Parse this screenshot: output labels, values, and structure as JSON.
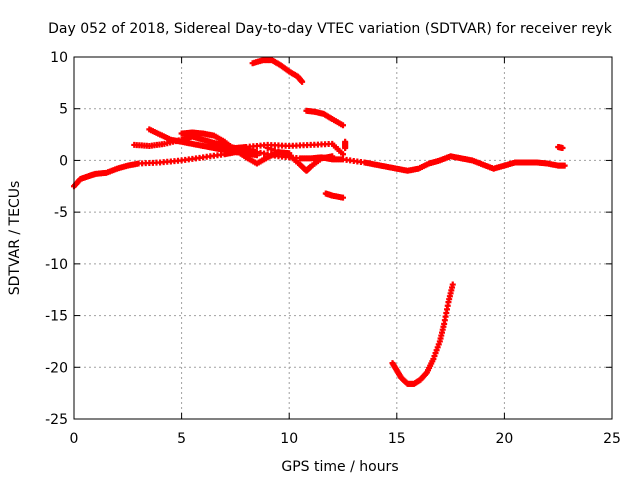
{
  "chart_data": {
    "type": "scatter",
    "title": "Day 052 of 2018, Sidereal Day-to-day VTEC variation (SDTVAR) for receiver reyk",
    "xlabel": "GPS time / hours",
    "ylabel": "SDTVAR / TECUs",
    "xlim": [
      0,
      25
    ],
    "ylim": [
      -25,
      10
    ],
    "xticks": [
      0,
      5,
      10,
      15,
      20,
      25
    ],
    "yticks": [
      -25,
      -20,
      -15,
      -10,
      -5,
      0,
      5,
      10
    ],
    "xtick_labels": [
      "0",
      "5",
      "10",
      "15",
      "20",
      "25"
    ],
    "ytick_labels": [
      "-25",
      "-20",
      "-15",
      "-10",
      "-5",
      "0",
      "5",
      "10"
    ],
    "grid": true,
    "marker_color": "#ff0000",
    "series": [
      {
        "name": "trace-main-low",
        "values": [
          [
            0.0,
            -2.5
          ],
          [
            0.3,
            -1.8
          ],
          [
            0.7,
            -1.5
          ],
          [
            1.0,
            -1.3
          ],
          [
            1.5,
            -1.2
          ],
          [
            2.0,
            -0.8
          ],
          [
            2.5,
            -0.5
          ],
          [
            3.0,
            -0.3
          ],
          [
            4.0,
            -0.2
          ],
          [
            5.0,
            0.0
          ],
          [
            6.0,
            0.3
          ],
          [
            7.0,
            0.6
          ],
          [
            7.5,
            0.8
          ],
          [
            8.0,
            1.0
          ],
          [
            8.5,
            0.8
          ],
          [
            9.5,
            0.4
          ],
          [
            10.5,
            0.2
          ],
          [
            11.0,
            0.2
          ],
          [
            11.5,
            0.3
          ],
          [
            12.0,
            0.1
          ],
          [
            12.5,
            0.1
          ],
          [
            13.5,
            -0.2
          ],
          [
            14.0,
            -0.4
          ],
          [
            14.5,
            -0.6
          ],
          [
            15.0,
            -0.8
          ],
          [
            15.5,
            -1.0
          ],
          [
            16.0,
            -0.8
          ],
          [
            16.5,
            -0.3
          ],
          [
            17.0,
            0.0
          ],
          [
            17.5,
            0.4
          ],
          [
            18.0,
            0.2
          ],
          [
            18.5,
            0.0
          ],
          [
            19.0,
            -0.4
          ],
          [
            19.5,
            -0.8
          ],
          [
            20.0,
            -0.5
          ],
          [
            20.5,
            -0.2
          ],
          [
            21.0,
            -0.2
          ],
          [
            21.5,
            -0.2
          ],
          [
            22.0,
            -0.3
          ],
          [
            22.5,
            -0.5
          ],
          [
            22.8,
            -0.5
          ]
        ]
      },
      {
        "name": "trace-upper-a",
        "values": [
          [
            2.8,
            1.5
          ],
          [
            3.5,
            1.4
          ],
          [
            4.2,
            1.6
          ],
          [
            5.0,
            2.0
          ],
          [
            5.5,
            2.3
          ],
          [
            6.0,
            2.0
          ],
          [
            6.5,
            1.7
          ],
          [
            7.0,
            1.4
          ],
          [
            7.5,
            1.2
          ],
          [
            8.0,
            1.3
          ],
          [
            9.0,
            1.5
          ],
          [
            10.0,
            1.4
          ],
          [
            11.0,
            1.5
          ],
          [
            12.0,
            1.6
          ],
          [
            12.5,
            0.6
          ]
        ]
      },
      {
        "name": "trace-upper-b",
        "values": [
          [
            3.5,
            3.0
          ],
          [
            4.0,
            2.5
          ],
          [
            4.5,
            2.0
          ],
          [
            5.0,
            1.8
          ],
          [
            5.5,
            1.6
          ],
          [
            6.0,
            1.4
          ],
          [
            6.5,
            1.2
          ],
          [
            7.0,
            1.0
          ],
          [
            7.5,
            0.8
          ],
          [
            8.0,
            0.7
          ],
          [
            8.5,
            0.5
          ]
        ]
      },
      {
        "name": "trace-upper-c",
        "values": [
          [
            5.0,
            2.6
          ],
          [
            5.5,
            2.7
          ],
          [
            6.0,
            2.6
          ],
          [
            6.5,
            2.4
          ],
          [
            7.0,
            1.8
          ],
          [
            7.5,
            1.0
          ],
          [
            8.0,
            0.3
          ],
          [
            8.5,
            -0.3
          ],
          [
            9.0,
            0.3
          ],
          [
            9.5,
            0.8
          ],
          [
            10.0,
            0.7
          ]
        ]
      },
      {
        "name": "trace-upper-d",
        "values": [
          [
            9.0,
            1.2
          ],
          [
            10.0,
            0.5
          ],
          [
            10.5,
            -0.4
          ],
          [
            10.8,
            -1.0
          ],
          [
            11.0,
            -0.6
          ],
          [
            11.5,
            0.2
          ],
          [
            12.0,
            0.4
          ]
        ]
      },
      {
        "name": "trace-top",
        "values": [
          [
            8.3,
            9.4
          ],
          [
            8.8,
            9.7
          ],
          [
            9.2,
            9.7
          ],
          [
            9.6,
            9.2
          ],
          [
            10.0,
            8.6
          ],
          [
            10.4,
            8.1
          ],
          [
            10.6,
            7.6
          ]
        ]
      },
      {
        "name": "trace-mid-right",
        "values": [
          [
            10.8,
            4.8
          ],
          [
            11.2,
            4.7
          ],
          [
            11.6,
            4.5
          ],
          [
            12.0,
            4.0
          ],
          [
            12.5,
            3.4
          ]
        ]
      },
      {
        "name": "trace-short-low",
        "values": [
          [
            11.7,
            -3.2
          ],
          [
            12.0,
            -3.4
          ],
          [
            12.5,
            -3.6
          ]
        ]
      },
      {
        "name": "trace-blip-right",
        "values": [
          [
            12.6,
            1.8
          ],
          [
            12.6,
            1.2
          ]
        ]
      },
      {
        "name": "trace-end-blip",
        "values": [
          [
            22.5,
            1.3
          ],
          [
            22.7,
            1.2
          ]
        ]
      },
      {
        "name": "trace-dip",
        "values": [
          [
            14.8,
            -19.6
          ],
          [
            15.0,
            -20.3
          ],
          [
            15.2,
            -21.0
          ],
          [
            15.5,
            -21.6
          ],
          [
            15.8,
            -21.6
          ],
          [
            16.1,
            -21.2
          ],
          [
            16.4,
            -20.5
          ],
          [
            16.7,
            -19.2
          ],
          [
            17.0,
            -17.5
          ],
          [
            17.2,
            -15.8
          ],
          [
            17.4,
            -13.7
          ],
          [
            17.6,
            -12.0
          ]
        ]
      }
    ]
  }
}
